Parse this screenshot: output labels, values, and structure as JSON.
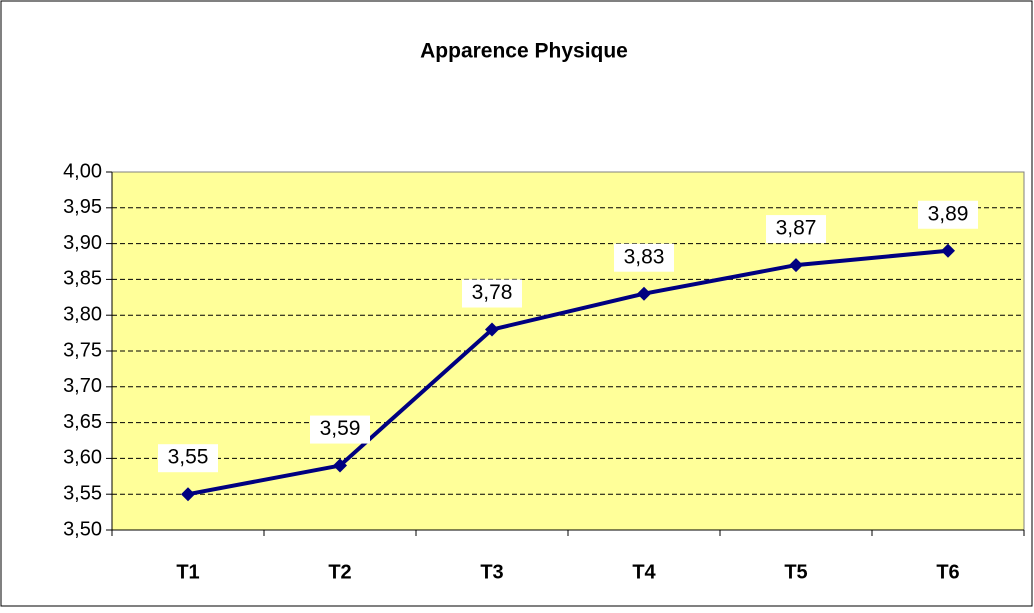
{
  "chart_data": {
    "type": "line",
    "title": "Apparence Physique",
    "categories": [
      "T1",
      "T2",
      "T3",
      "T4",
      "T5",
      "T6"
    ],
    "values": [
      3.55,
      3.59,
      3.78,
      3.83,
      3.87,
      3.89
    ],
    "value_labels": [
      "3,55",
      "3,59",
      "3,78",
      "3,83",
      "3,87",
      "3,89"
    ],
    "color": "#000080",
    "ylim": [
      3.5,
      4.0
    ],
    "yticks": [
      {
        "value": 3.5,
        "label": "3,50"
      },
      {
        "value": 3.55,
        "label": "3,55"
      },
      {
        "value": 3.6,
        "label": "3,60"
      },
      {
        "value": 3.65,
        "label": "3,65"
      },
      {
        "value": 3.7,
        "label": "3,70"
      },
      {
        "value": 3.75,
        "label": "3,75"
      },
      {
        "value": 3.8,
        "label": "3,80"
      },
      {
        "value": 3.85,
        "label": "3,85"
      },
      {
        "value": 3.9,
        "label": "3,90"
      },
      {
        "value": 3.95,
        "label": "3,95"
      },
      {
        "value": 4.0,
        "label": "4,00"
      }
    ],
    "grid": true
  }
}
